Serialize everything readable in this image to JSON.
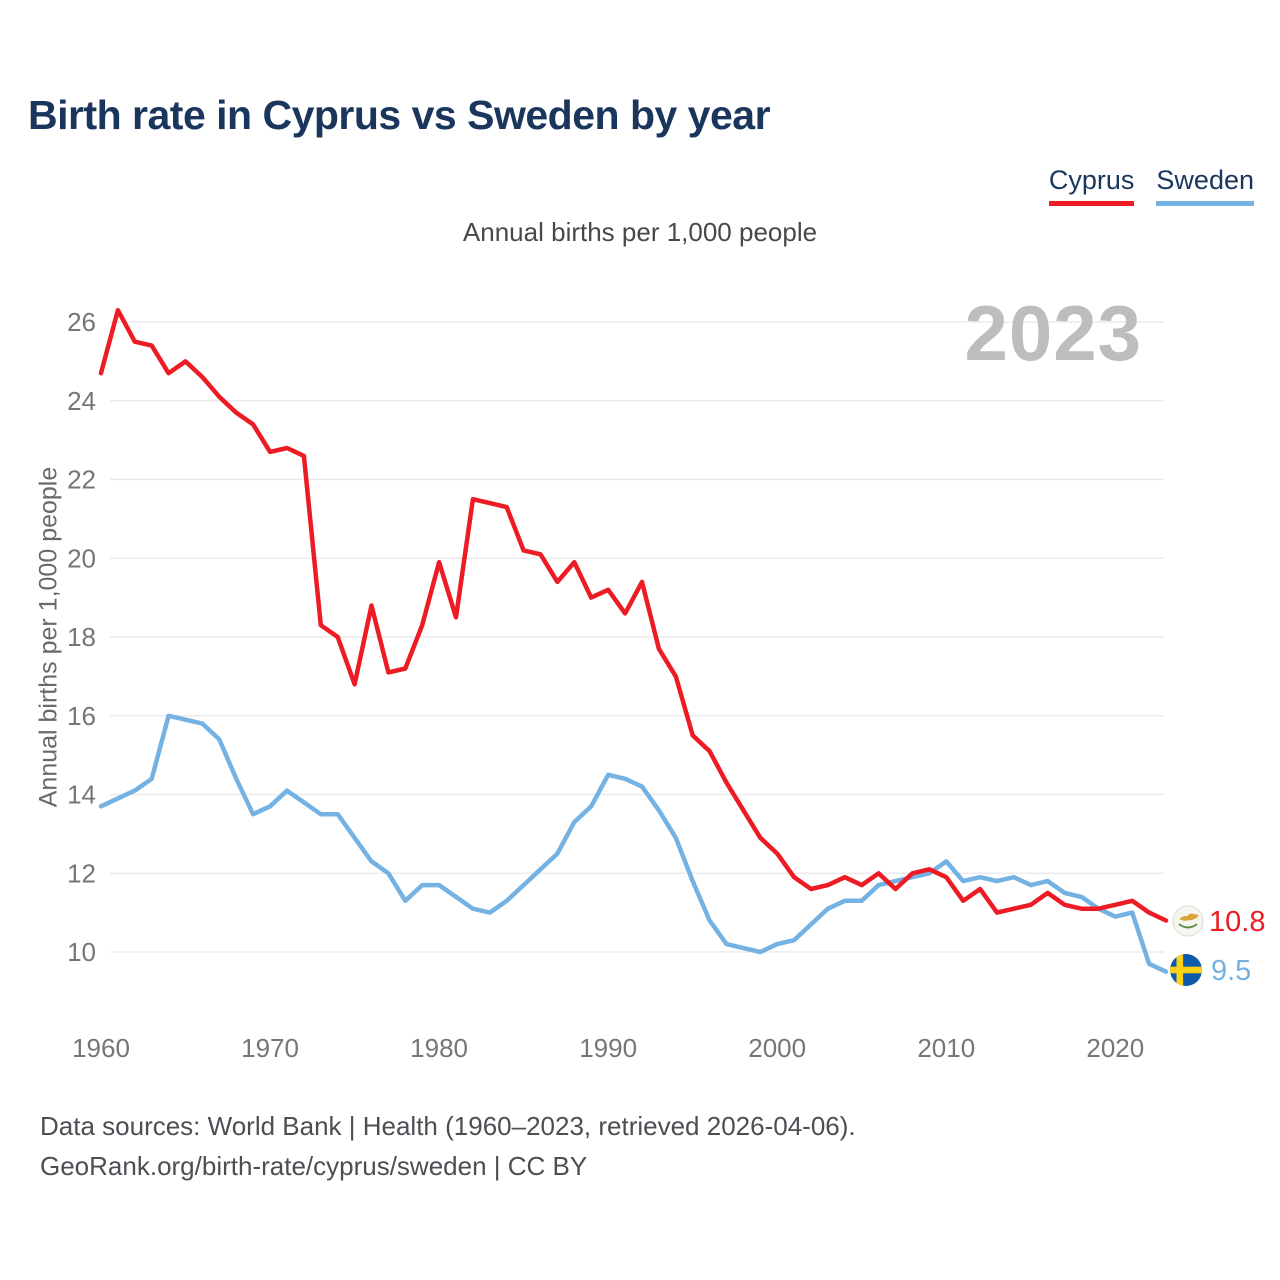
{
  "title": "Birth rate in Cyprus vs Sweden by year",
  "subtitle": "Annual births per 1,000 people",
  "y_axis_label": "Annual births per 1,000 people",
  "watermark": "2023",
  "legend": [
    {
      "label": "Cyprus",
      "color": "#ED1C24"
    },
    {
      "label": "Sweden",
      "color": "#74B2E3"
    }
  ],
  "end_labels": [
    {
      "series": "Cyprus",
      "value": "10.8",
      "flag_icon": "cyprus-flag-icon",
      "color": "#ED1C24"
    },
    {
      "series": "Sweden",
      "value": "9.5",
      "flag_icon": "sweden-flag-icon",
      "color": "#74B2E3"
    }
  ],
  "footer": {
    "line1": "Data sources: World Bank | Health (1960–2023, retrieved 2026-04-06).",
    "line2": "GeoRank.org/birth-rate/cyprus/sweden | CC BY"
  },
  "colors": {
    "cyprus_line": "#ED1C24",
    "sweden_line": "#74B2E3",
    "title_navy": "#1b365d",
    "gridline": "#e8e8eb",
    "tick_text": "#76767a",
    "watermark_gray": "#bdbdbd"
  },
  "chart_data": {
    "type": "line",
    "title": "Birth rate in Cyprus vs Sweden by year",
    "subtitle": "Annual births per 1,000 people",
    "ylabel": "Annual births per 1,000 people",
    "x_range": [
      1960,
      2023
    ],
    "x_ticks": [
      1960,
      1970,
      1980,
      1990,
      2000,
      2010,
      2020
    ],
    "y_ticks": [
      10,
      12,
      14,
      16,
      18,
      20,
      22,
      24,
      26
    ],
    "ylim": [
      9.2,
      26.8
    ],
    "grid": "horizontal",
    "legend_position": "top-right",
    "series": [
      {
        "name": "Cyprus",
        "color": "#ED1C24",
        "values": [
          24.7,
          26.3,
          25.5,
          25.4,
          24.7,
          25.0,
          24.6,
          24.1,
          23.7,
          23.4,
          22.7,
          22.8,
          22.6,
          18.3,
          18.0,
          16.8,
          18.8,
          17.1,
          17.2,
          18.3,
          19.9,
          18.5,
          21.5,
          21.4,
          21.3,
          20.2,
          20.1,
          19.4,
          19.9,
          19.0,
          19.2,
          18.6,
          19.4,
          17.7,
          17.0,
          15.5,
          15.1,
          14.3,
          13.6,
          12.9,
          12.5,
          11.9,
          11.6,
          11.7,
          11.9,
          11.7,
          12.0,
          11.6,
          12.0,
          12.1,
          11.9,
          11.3,
          11.6,
          11.0,
          11.1,
          11.2,
          11.5,
          11.2,
          11.1,
          11.1,
          11.2,
          11.3,
          11.0,
          10.8
        ]
      },
      {
        "name": "Sweden",
        "color": "#74B2E3",
        "values": [
          13.7,
          13.9,
          14.1,
          14.4,
          16.0,
          15.9,
          15.8,
          15.4,
          14.4,
          13.5,
          13.7,
          14.1,
          13.8,
          13.5,
          13.5,
          12.9,
          12.3,
          12.0,
          11.3,
          11.7,
          11.7,
          11.4,
          11.1,
          11.0,
          11.3,
          11.7,
          12.1,
          12.5,
          13.3,
          13.7,
          14.5,
          14.4,
          14.2,
          13.6,
          12.9,
          11.8,
          10.8,
          10.2,
          10.1,
          10.0,
          10.2,
          10.3,
          10.7,
          11.1,
          11.3,
          11.3,
          11.7,
          11.8,
          11.9,
          12.0,
          12.3,
          11.8,
          11.9,
          11.8,
          11.9,
          11.7,
          11.8,
          11.5,
          11.4,
          11.1,
          10.9,
          11.0,
          9.7,
          9.5
        ]
      }
    ]
  }
}
